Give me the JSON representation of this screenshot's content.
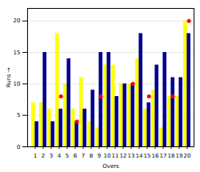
{
  "chart_data": {
    "type": "bar",
    "xlabel": "Overs",
    "ylabel": "Runs",
    "categories": [
      "1",
      "2",
      "3",
      "4",
      "5",
      "6",
      "7",
      "8",
      "9",
      "10",
      "11",
      "12",
      "13",
      "14",
      "15",
      "16",
      "17",
      "18",
      "19",
      "20"
    ],
    "series": [
      {
        "color": "#ffff00",
        "values": [
          7,
          7,
          6,
          18,
          10,
          6,
          11,
          4,
          3,
          13,
          13,
          10,
          10,
          14,
          6,
          9,
          3,
          8,
          8,
          20
        ]
      },
      {
        "color": "#00008b",
        "values": [
          4,
          15,
          4,
          6,
          14,
          4,
          6,
          9,
          15,
          15,
          8,
          10,
          10,
          18,
          7,
          13,
          15,
          11,
          11,
          18
        ]
      },
      {
        "type": "scatter",
        "color": "#ff0000",
        "marker": "circle",
        "values": [
          null,
          null,
          null,
          8,
          null,
          4,
          null,
          null,
          8,
          null,
          null,
          null,
          10,
          null,
          8,
          null,
          null,
          8,
          null,
          20
        ]
      }
    ],
    "ylim": [
      0,
      22
    ],
    "yticks": [
      0,
      5,
      10,
      15,
      20
    ],
    "grid": true
  }
}
